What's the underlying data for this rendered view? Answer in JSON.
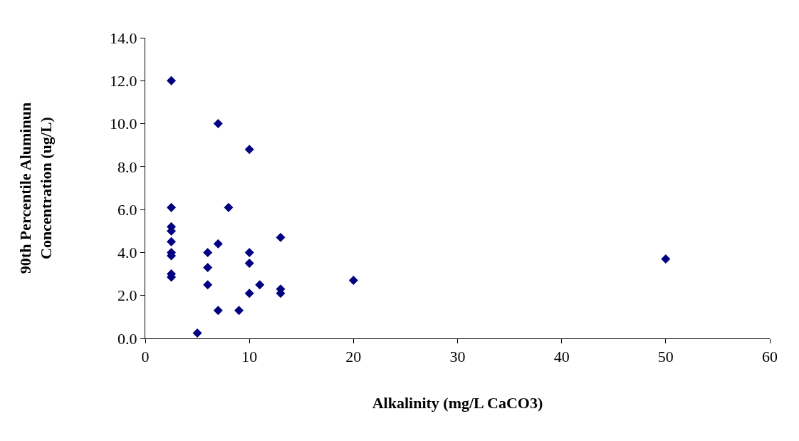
{
  "chart_data": {
    "type": "scatter",
    "xlabel": "Alkalinity (mg/L CaCO3)",
    "ylabel": "90th Percentile Aluminun\nConcentration (ug/L)",
    "x": [
      2.5,
      2.5,
      2.5,
      2.5,
      2.5,
      2.5,
      2.5,
      2.5,
      2.5,
      6,
      6,
      6,
      5,
      7,
      7,
      7,
      8,
      9,
      10,
      10,
      10,
      10,
      11,
      13,
      13,
      13,
      20,
      50
    ],
    "series": [
      {
        "color": "#000080",
        "values": [
          12.0,
          6.1,
          5.2,
          5.0,
          4.5,
          4.0,
          3.85,
          3.0,
          2.85,
          4.0,
          3.3,
          2.5,
          0.25,
          10.0,
          4.4,
          1.3,
          6.1,
          1.3,
          8.8,
          4.0,
          3.5,
          2.1,
          2.5,
          4.7,
          2.3,
          2.1,
          2.7,
          3.7
        ]
      }
    ],
    "xlim": [
      0,
      60
    ],
    "xticks": [
      0,
      10,
      20,
      30,
      40,
      50,
      60
    ],
    "ylim": [
      0,
      14
    ],
    "yticks": [
      {
        "value": 0,
        "label": "0.0"
      },
      {
        "value": 2,
        "label": "2.0"
      },
      {
        "value": 4,
        "label": "4.0"
      },
      {
        "value": 6,
        "label": "6.0"
      },
      {
        "value": 8,
        "label": "8.0"
      },
      {
        "value": 10,
        "label": "10.0"
      },
      {
        "value": 12,
        "label": "12.0"
      },
      {
        "value": 14,
        "label": "14.0"
      }
    ],
    "marker": "diamond"
  }
}
